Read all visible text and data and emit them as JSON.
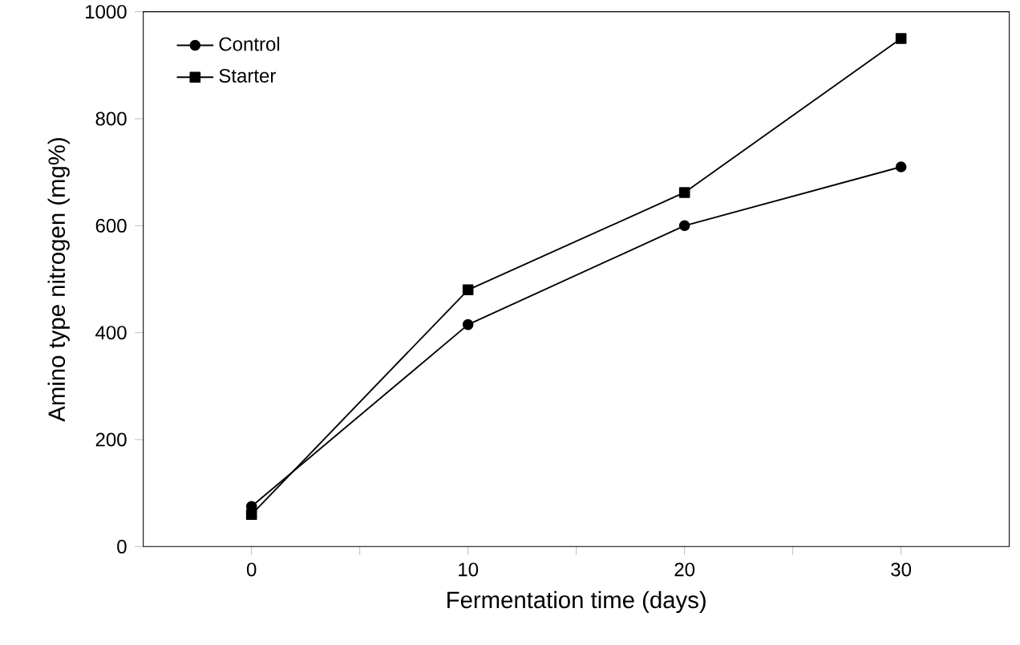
{
  "chart_data": {
    "type": "line",
    "xlabel": "Fermentation time (days)",
    "ylabel": "Amino type nitrogen (mg%)",
    "x": [
      0,
      10,
      20,
      30
    ],
    "series": [
      {
        "name": "Control",
        "color": "#000000",
        "marker": "circle",
        "values": [
          75,
          415,
          600,
          710
        ]
      },
      {
        "name": "Starter",
        "color": "#000000",
        "marker": "square",
        "values": [
          60,
          480,
          662,
          950
        ]
      }
    ],
    "xlim": [
      -5,
      35
    ],
    "xticks": [
      0,
      {
        "value": 5,
        "label": null
      },
      10,
      {
        "value": 15,
        "label": null
      },
      20,
      {
        "value": 25,
        "label": null
      },
      30
    ],
    "ylim": [
      0,
      1000
    ],
    "yticks": [
      0,
      200,
      400,
      600,
      800,
      1000
    ],
    "grid": false,
    "legend": "top left",
    "line_style": "solid"
  }
}
